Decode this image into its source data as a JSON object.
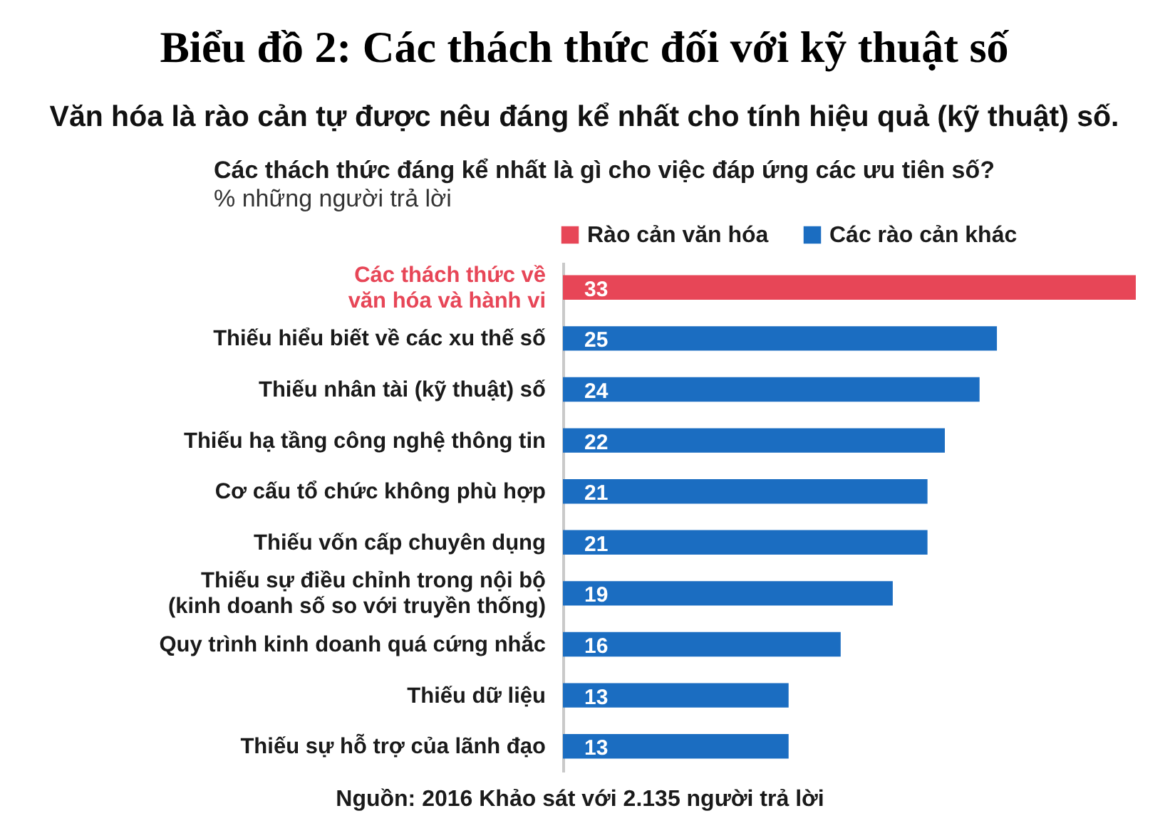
{
  "chart_data": {
    "type": "bar",
    "orientation": "horizontal",
    "title": "Biểu đồ 2: Các thách thức đối với kỹ thuật số",
    "subtitle": "Văn hóa là rào cản tự được nêu đáng kể nhất cho tính hiệu quả (kỹ thuật) số.",
    "annotations": [
      "Các thách thức đáng kể nhất là gì cho việc đáp ứng các ưu tiên số?",
      "% những người trả lời",
      "Nguồn: 2016 Khảo sát với 2.135 người trả lời"
    ],
    "categories": [
      "Các thách thức về\nvăn hóa và hành vi",
      "Thiếu hiểu biết về các xu thế số",
      "Thiếu nhân  tài (kỹ thuật) số",
      "Thiếu hạ tầng công nghệ thông tin",
      "Cơ cấu tổ chức không phù hợp",
      "Thiếu vốn cấp chuyên dụng",
      "Thiếu sự điều chỉnh trong nội bộ\n(kinh doanh số so với truyền thống)",
      "Quy trình kinh doanh quá cứng nhắc",
      "Thiếu dữ liệu",
      "Thiếu sự hỗ trợ của lãnh đạo"
    ],
    "series": [
      {
        "name": "Rào cản văn hóa",
        "color": "#e74657",
        "values": [
          33,
          null,
          null,
          null,
          null,
          null,
          null,
          null,
          null,
          null
        ]
      },
      {
        "name": "Các rào cản khác",
        "color": "#1b6dc1",
        "values": [
          null,
          25,
          24,
          22,
          21,
          21,
          19,
          16,
          13,
          13
        ]
      }
    ],
    "data_labels": true,
    "legend": "top",
    "grid": false
  }
}
